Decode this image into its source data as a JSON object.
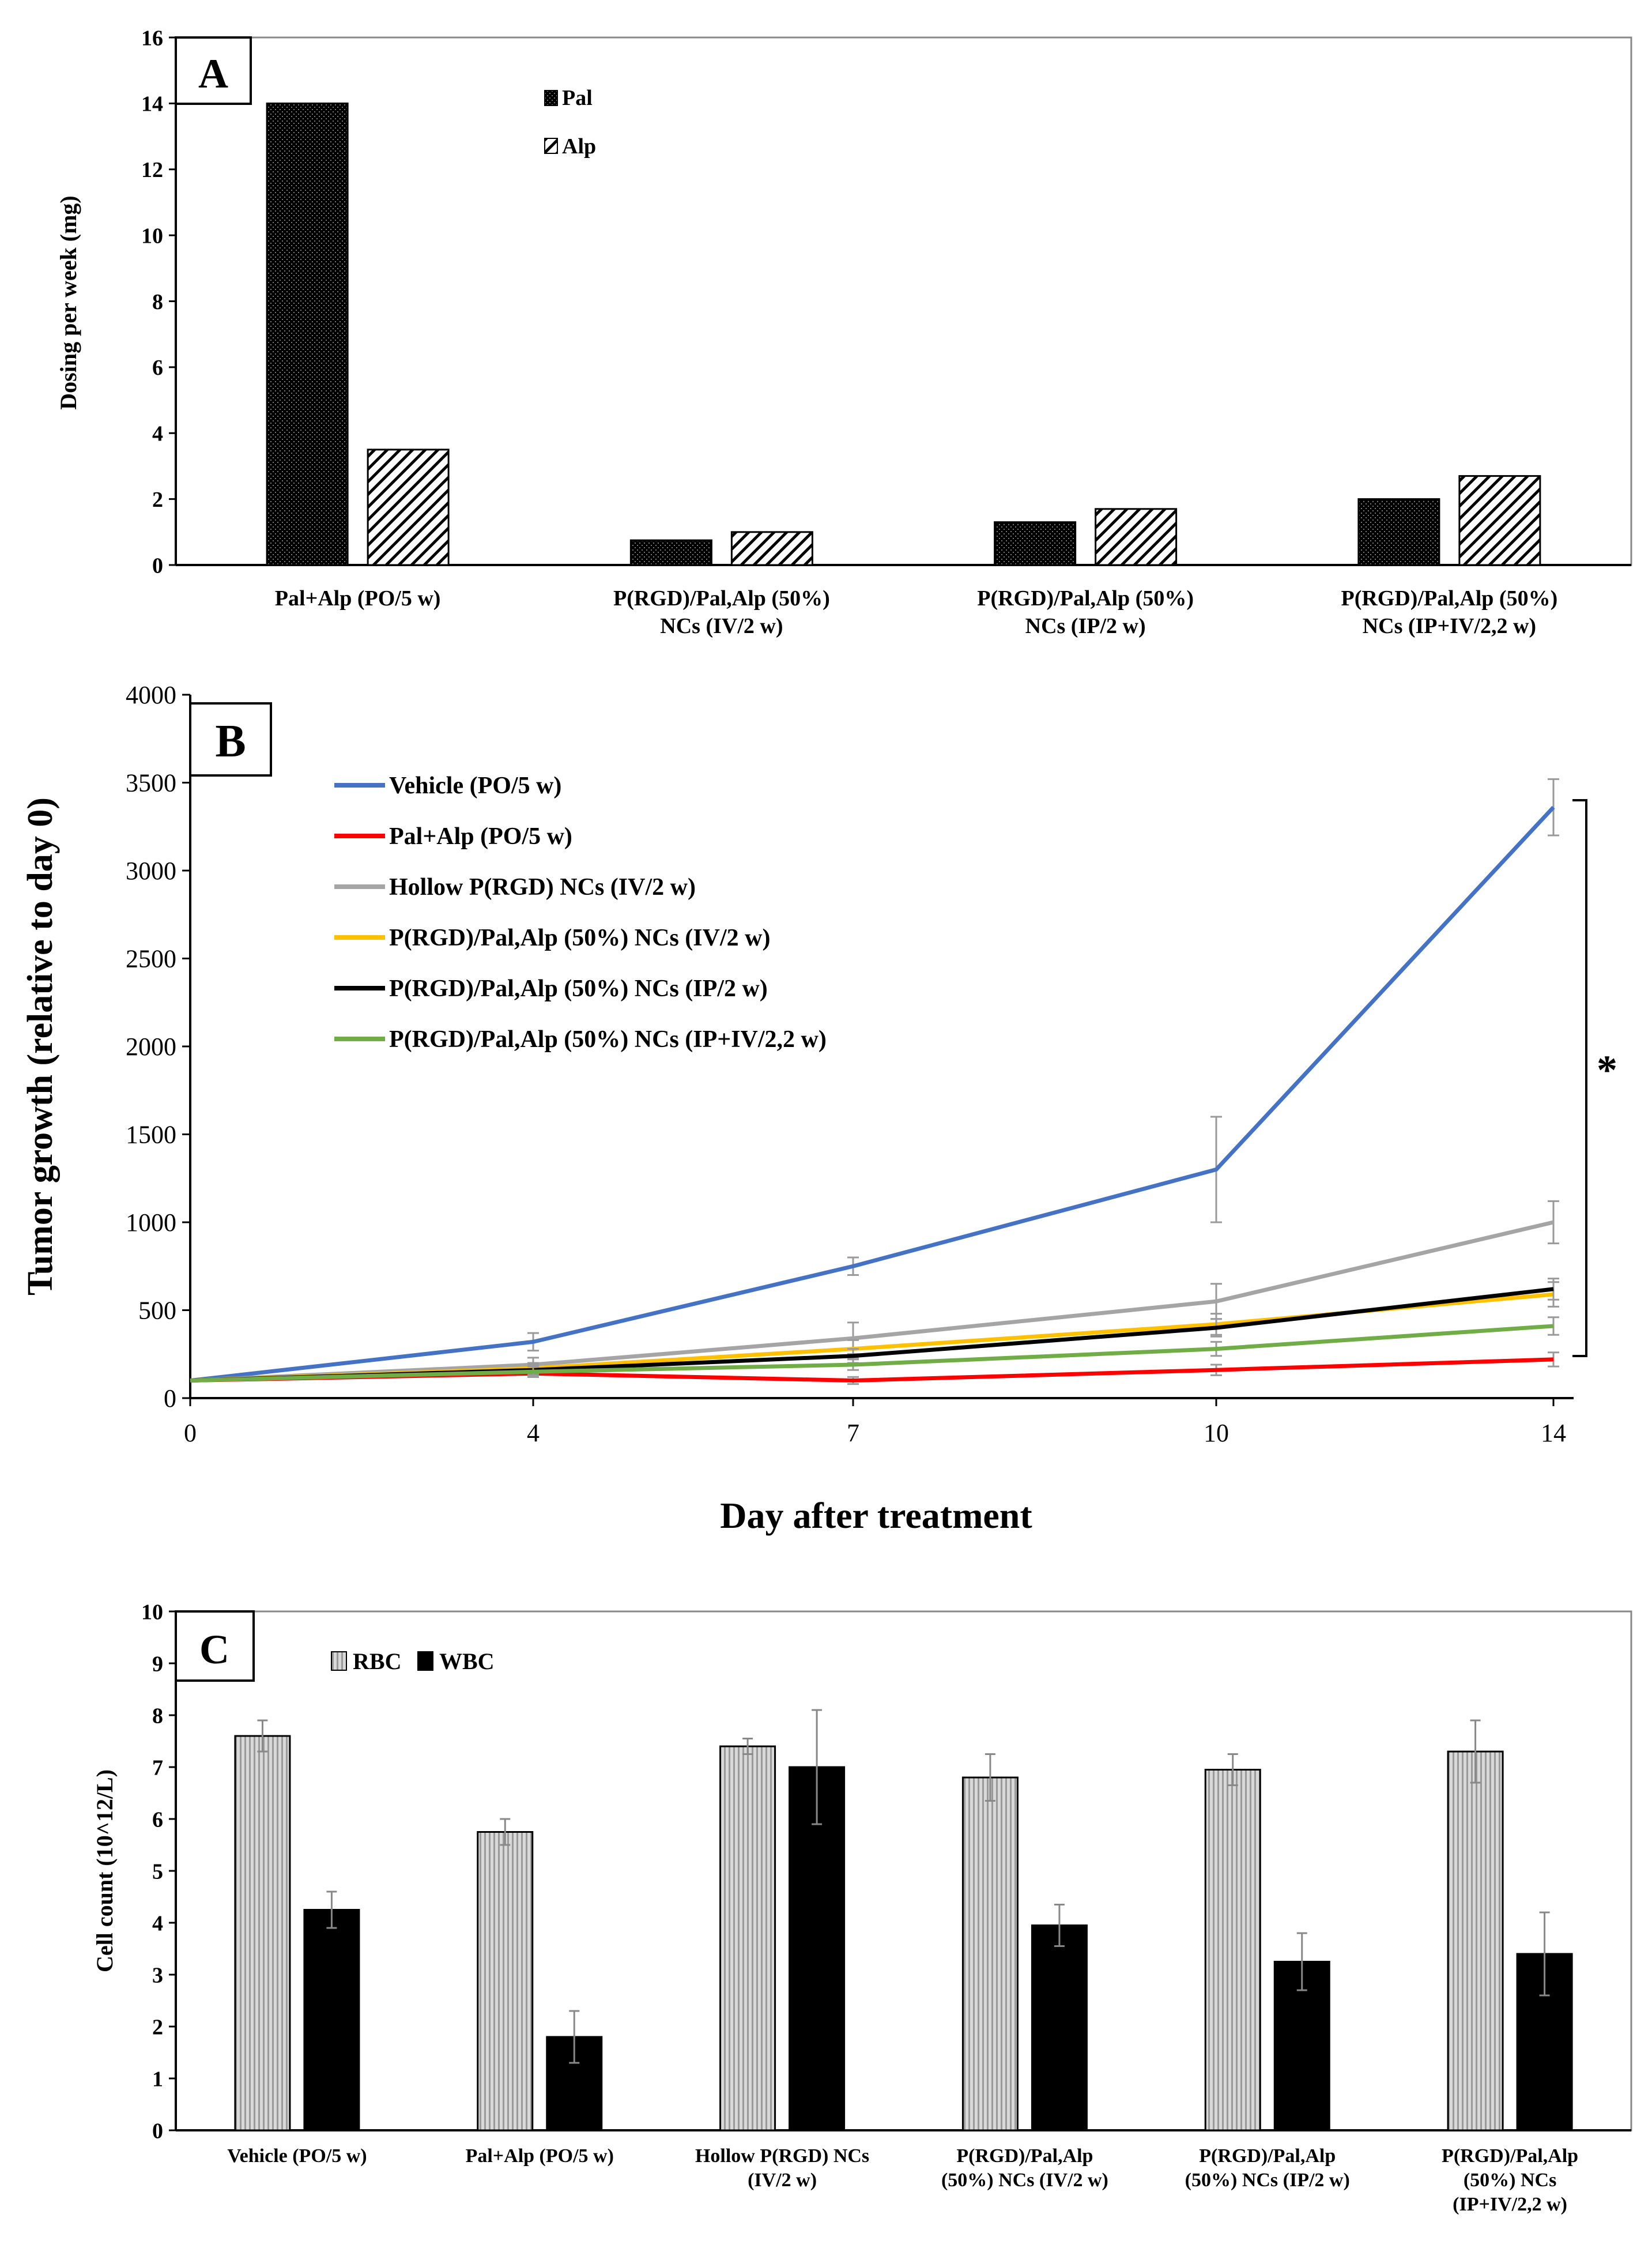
{
  "panels": [
    {
      "id": "A",
      "panel_label": "A",
      "chart_data": {
        "type": "bar",
        "title": "",
        "xlabel": "",
        "ylabel": "Dosing per week (mg)",
        "ylim": [
          0,
          16
        ],
        "yticks": [
          "0",
          "2",
          "4",
          "6",
          "8",
          "10",
          "12",
          "14",
          "16"
        ],
        "grid": false,
        "legend": "top-center",
        "categories": [
          [
            "Pal+Alp (PO/5 w)"
          ],
          [
            "P(RGD)/Pal,Alp (50%)",
            "NCs  (IV/2 w)"
          ],
          [
            "P(RGD)/Pal,Alp (50%)",
            "NCs (IP/2 w)"
          ],
          [
            "P(RGD)/Pal,Alp (50%)",
            "NCs (IP+IV/2,2 w)"
          ]
        ],
        "series": [
          {
            "name": "Pal",
            "pattern": "dots-dark",
            "values": [
              14,
              0.75,
              1.3,
              2.0
            ]
          },
          {
            "name": "Alp",
            "pattern": "diagonal",
            "values": [
              3.5,
              1.0,
              1.7,
              2.7
            ]
          }
        ]
      }
    },
    {
      "id": "B",
      "panel_label": "B",
      "chart_data": {
        "type": "line",
        "title": "",
        "xlabel": "Day after treatment",
        "ylabel": "Tumor growth (relative to day 0)",
        "x": [
          0,
          4,
          7,
          10,
          14
        ],
        "xticks": [
          "0",
          "4",
          "7",
          "10",
          "14"
        ],
        "ylim": [
          0,
          4000
        ],
        "yticks": [
          "0",
          "500",
          "1000",
          "1500",
          "2000",
          "2500",
          "3000",
          "3500",
          "4000"
        ],
        "grid": false,
        "legend": "top-left",
        "annotation": "*",
        "series": [
          {
            "name": "Vehicle (PO/5 w)",
            "color": "#4472c4",
            "values": [
              100,
              320,
              750,
              1300,
              3360
            ],
            "errors": [
              0,
              50,
              50,
              300,
              160
            ]
          },
          {
            "name": "Pal+Alp (PO/5 w)",
            "color": "#ff0000",
            "values": [
              100,
              140,
              100,
              160,
              220
            ],
            "errors": [
              0,
              20,
              20,
              30,
              40
            ]
          },
          {
            "name": "Hollow P(RGD) NCs (IV/2 w)",
            "color": "#a5a5a5",
            "values": [
              100,
              190,
              340,
              550,
              1000
            ],
            "errors": [
              0,
              40,
              90,
              100,
              120
            ]
          },
          {
            "name": "P(RGD)/Pal,Alp (50%) NCs (IV/2 w)",
            "color": "#ffc000",
            "values": [
              100,
              170,
              280,
              420,
              590
            ],
            "errors": [
              0,
              30,
              50,
              60,
              70
            ]
          },
          {
            "name": "P(RGD)/Pal,Alp (50%) NCs (IP/2 w)",
            "color": "#000000",
            "values": [
              100,
              160,
              240,
              400,
              620
            ],
            "errors": [
              0,
              30,
              40,
              50,
              60
            ]
          },
          {
            "name": "P(RGD)/Pal,Alp (50%) NCs (IP+IV/2,2 w)",
            "color": "#70ad47",
            "values": [
              100,
              150,
              190,
              280,
              410
            ],
            "errors": [
              0,
              30,
              30,
              40,
              50
            ]
          }
        ]
      }
    },
    {
      "id": "C",
      "panel_label": "C",
      "chart_data": {
        "type": "bar",
        "title": "",
        "xlabel": "",
        "ylabel": "Cell count (10^12/L)",
        "ylim": [
          0,
          10
        ],
        "yticks": [
          "0",
          "1",
          "2",
          "3",
          "4",
          "5",
          "6",
          "7",
          "8",
          "9",
          "10"
        ],
        "grid": false,
        "legend": "top-left",
        "categories": [
          [
            "Vehicle (PO/5 w)"
          ],
          [
            "Pal+Alp (PO/5 w)"
          ],
          [
            "Hollow P(RGD) NCs",
            "(IV/2 w)"
          ],
          [
            "P(RGD)/Pal,Alp",
            "(50%) NCs  (IV/2 w)"
          ],
          [
            "P(RGD)/Pal,Alp",
            "(50%) NCs (IP/2 w)"
          ],
          [
            "P(RGD)/Pal,Alp",
            "(50%) NCs",
            "(IP+IV/2,2 w)"
          ]
        ],
        "series": [
          {
            "name": "RBC",
            "pattern": "stripes-light",
            "values": [
              7.6,
              5.75,
              7.4,
              6.8,
              6.95,
              7.3
            ],
            "errors": [
              0.3,
              0.25,
              0.15,
              0.45,
              0.3,
              0.6
            ]
          },
          {
            "name": "WBC",
            "pattern": "solid-dark",
            "values": [
              4.25,
              1.8,
              7.0,
              3.95,
              3.25,
              3.4
            ],
            "errors": [
              0.35,
              0.5,
              1.1,
              0.4,
              0.55,
              0.8
            ]
          }
        ]
      }
    }
  ]
}
